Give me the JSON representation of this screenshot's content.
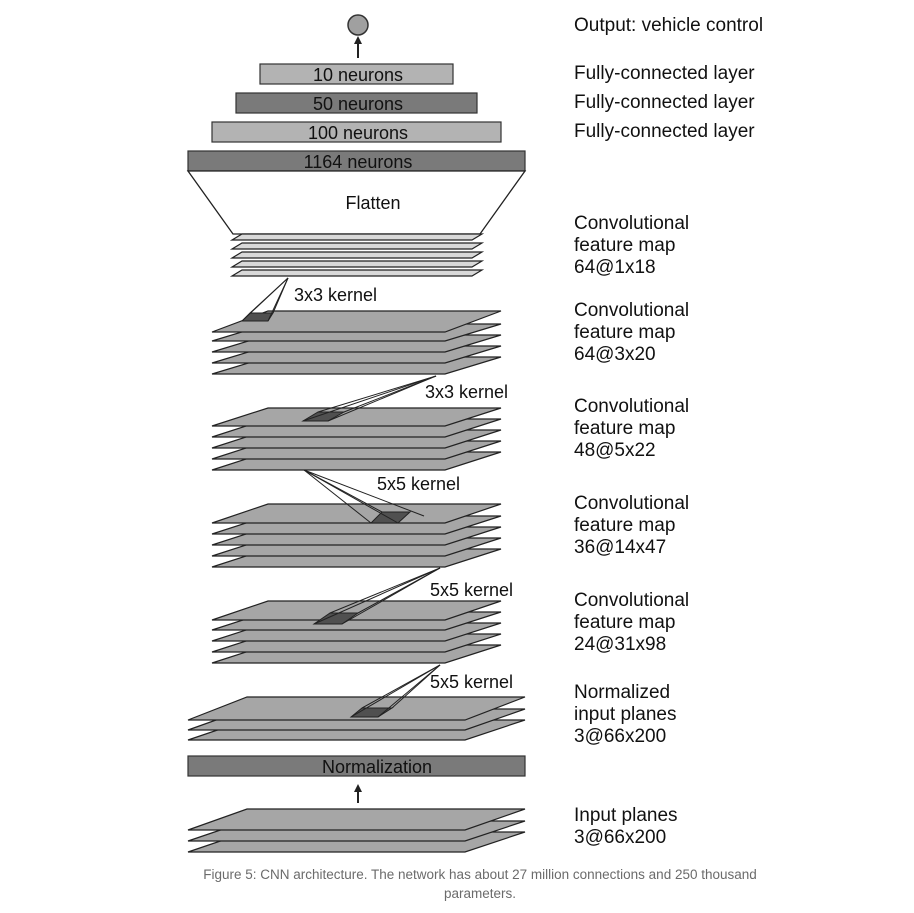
{
  "output_label": "Output: vehicle control",
  "layers": {
    "fc10": {
      "text": "10 neurons",
      "desc": "Fully-connected layer"
    },
    "fc50": {
      "text": "50 neurons",
      "desc": "Fully-connected layer"
    },
    "fc100": {
      "text": "100 neurons",
      "desc": "Fully-connected layer"
    },
    "fc1164": {
      "text": "1164 neurons"
    },
    "flatten": {
      "text": "Flatten"
    },
    "conv5": {
      "desc": [
        "Convolutional",
        "feature map",
        "64@1x18"
      ]
    },
    "conv4": {
      "desc": [
        "Convolutional",
        "feature map",
        "64@3x20"
      ]
    },
    "conv3": {
      "desc": [
        "Convolutional",
        "feature map",
        "48@5x22"
      ]
    },
    "conv2": {
      "desc": [
        "Convolutional",
        "feature map",
        "36@14x47"
      ]
    },
    "conv1": {
      "desc": [
        "Convolutional",
        "feature map",
        "24@31x98"
      ]
    },
    "norm_planes": {
      "desc": [
        "Normalized",
        "input planes",
        "3@66x200"
      ]
    },
    "normalization": {
      "text": "Normalization"
    },
    "input": {
      "desc": [
        "Input planes",
        "3@66x200"
      ]
    }
  },
  "kernels": {
    "k5": "3x3 kernel",
    "k4": "3x3 kernel",
    "k3": "5x5 kernel",
    "k2": "5x5 kernel",
    "k1": "5x5 kernel"
  },
  "caption": "Figure 5: CNN architecture. The network has about 27 million connections and 250 thousand parameters.",
  "colors": {
    "dark_box": "#7a7a7a",
    "light_box": "#b3b3b3",
    "plane": "#a6a6a6",
    "plane_light": "#d9d9d9",
    "kernel_patch": "#505050",
    "output_node": "#a0a0a0",
    "caption_text": "#6b6b6b"
  }
}
